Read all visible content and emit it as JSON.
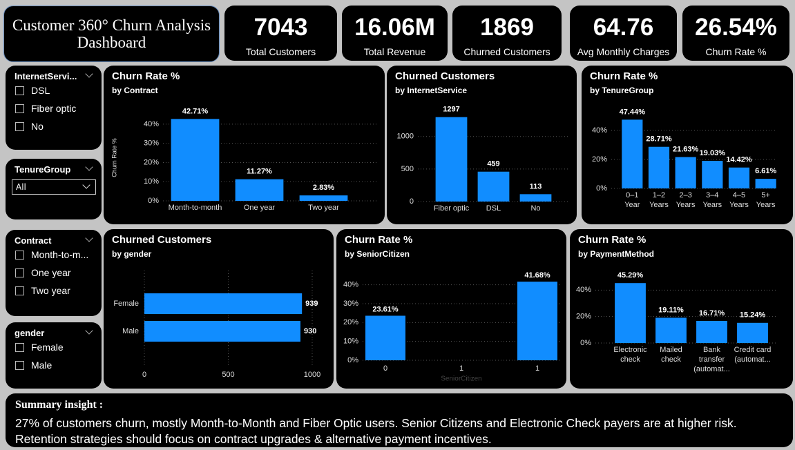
{
  "header": {
    "title": "Customer 360° Churn Analysis Dashboard"
  },
  "kpis": [
    {
      "value": "7043",
      "label": "Total Customers"
    },
    {
      "value": "16.06M",
      "label": "Total Revenue"
    },
    {
      "value": "1869",
      "label": "Churned Customers"
    },
    {
      "value": "64.76",
      "label": "Avg Monthly Charges"
    },
    {
      "value": "26.54%",
      "label": "Churn Rate %"
    }
  ],
  "slicers": [
    {
      "title": "InternetServi...",
      "items": [
        "DSL",
        "Fiber optic",
        "No"
      ]
    },
    {
      "title": "TenureGroup",
      "selected": "All"
    },
    {
      "title": "Contract",
      "items": [
        "Month-to-m...",
        "One year",
        "Two year"
      ]
    },
    {
      "title": "gender",
      "items": [
        "Female",
        "Male"
      ]
    }
  ],
  "summary": {
    "title": "Summary insight :",
    "lines": [
      "27% of customers churn, mostly Month-to-Month and Fiber Optic users. Senior Citizens and Electronic Check payers are at higher risk.",
      "Retention strategies should focus on contract upgrades & alternative payment incentives."
    ]
  },
  "chart_data": [
    {
      "type": "bar",
      "title": "Churn Rate %",
      "subtitle": "by Contract",
      "y_label": "Churn Rate %",
      "categories": [
        "Month-to-month",
        "One year",
        "Two year"
      ],
      "values": [
        42.71,
        11.27,
        2.83
      ],
      "value_labels": [
        "42.71%",
        "11.27%",
        "2.83%"
      ],
      "color": "#118dff",
      "ylim": [
        0,
        45
      ],
      "yticks": [
        {
          "value": 0,
          "label": "0%"
        },
        {
          "value": 10,
          "label": "10%"
        },
        {
          "value": 20,
          "label": "20%"
        },
        {
          "value": 30,
          "label": "30%"
        },
        {
          "value": 40,
          "label": "40%"
        }
      ],
      "grid": true
    },
    {
      "type": "bar",
      "title": "Churned Customers",
      "subtitle": "by InternetService",
      "categories": [
        "Fiber optic",
        "DSL",
        "No"
      ],
      "values": [
        1297,
        459,
        113
      ],
      "color": "#118dff",
      "ylim": [
        0,
        1400
      ],
      "yticks": [
        0,
        500,
        1000
      ],
      "grid": true
    },
    {
      "type": "bar",
      "title": "Churn Rate %",
      "subtitle": "by TenureGroup",
      "categories": [
        "0–1 Year",
        "1–2 Years",
        "2–3 Years",
        "3–4 Years",
        "4–5 Years",
        "5+ Years"
      ],
      "values": [
        47.44,
        28.71,
        21.63,
        19.03,
        14.42,
        6.61
      ],
      "value_labels": [
        "47.44%",
        "28.71%",
        "21.63%",
        "19.03%",
        "14.42%",
        "6.61%"
      ],
      "color": "#118dff",
      "ylim": [
        0,
        50
      ],
      "yticks": [
        {
          "value": 0,
          "label": "0%"
        },
        {
          "value": 20,
          "label": "20%"
        },
        {
          "value": 40,
          "label": "40%"
        }
      ],
      "grid": true
    },
    {
      "type": "barh",
      "title": "Churned Customers",
      "subtitle": "by gender",
      "categories": [
        "Female",
        "Male"
      ],
      "values": [
        939,
        930
      ],
      "color": "#118dff",
      "xlim": [
        0,
        1000
      ],
      "xticks": [
        0,
        500,
        1000
      ],
      "grid": true
    },
    {
      "type": "bar",
      "title": "Churn Rate %",
      "subtitle": "by SeniorCitizen",
      "x_label": "SeniorCitizen",
      "x": [
        0,
        1
      ],
      "values": [
        23.61,
        41.68
      ],
      "value_labels": [
        "23.61%",
        "41.68%"
      ],
      "color": "#118dff",
      "xlim": [
        -0.15,
        1.15
      ],
      "xticks": [
        0,
        {
          "value": 0.5,
          "label": "1"
        },
        1
      ],
      "ylim": [
        0,
        45
      ],
      "yticks": [
        {
          "value": 0,
          "label": "0%"
        },
        {
          "value": 10,
          "label": "10%"
        },
        {
          "value": 20,
          "label": "20%"
        },
        {
          "value": 30,
          "label": "30%"
        },
        {
          "value": 40,
          "label": "40%"
        }
      ],
      "grid": true
    },
    {
      "type": "bar",
      "title": "Churn Rate %",
      "subtitle": "by PaymentMethod",
      "categories": [
        "Electronic check",
        "Mailed check",
        "Bank transfer (automat...",
        "Credit card (automat..."
      ],
      "values": [
        45.29,
        19.11,
        16.71,
        15.24
      ],
      "value_labels": [
        "45.29%",
        "19.11%",
        "16.71%",
        "15.24%"
      ],
      "color": "#118dff",
      "ylim": [
        0,
        48
      ],
      "yticks": [
        {
          "value": 0,
          "label": "0%"
        },
        {
          "value": 20,
          "label": "20%"
        },
        {
          "value": 40,
          "label": "40%"
        }
      ],
      "grid": true
    }
  ]
}
